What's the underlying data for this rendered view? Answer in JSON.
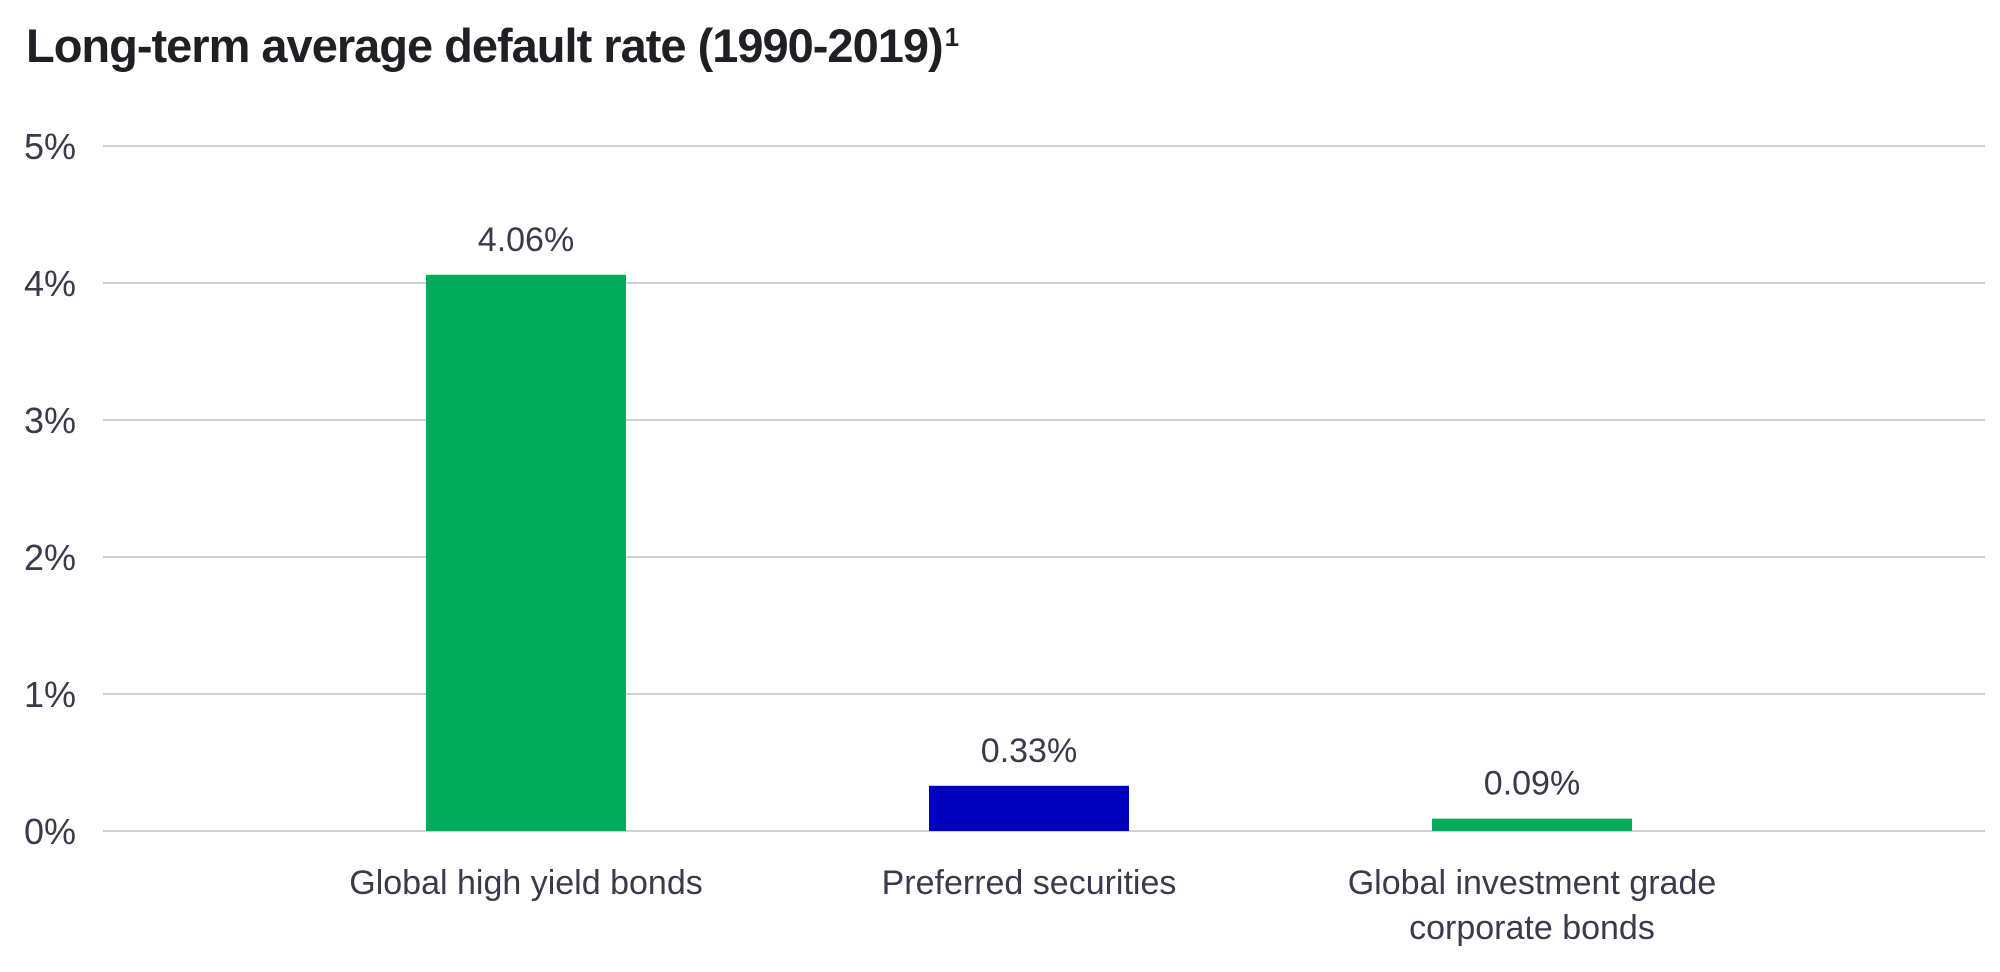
{
  "chart_data": {
    "type": "bar",
    "title": "Long-term average default rate (1990-2019)",
    "title_footnote": "1",
    "categories": [
      [
        "Global high yield bonds"
      ],
      [
        "Preferred securities"
      ],
      [
        "Global investment grade",
        "corporate bonds"
      ]
    ],
    "values": [
      4.06,
      0.33,
      0.09
    ],
    "value_labels": [
      "4.06%",
      "0.33%",
      "0.09%"
    ],
    "bar_colors": [
      "#00AB5C",
      "#0000C0",
      "#00AB5C"
    ],
    "ylim": [
      0,
      5
    ],
    "yticks": [
      0,
      1,
      2,
      3,
      4,
      5
    ],
    "ytick_labels": [
      "0%",
      "1%",
      "2%",
      "3%",
      "4%",
      "5%"
    ],
    "xlabel": "",
    "ylabel": "",
    "grid": true,
    "legend": false
  },
  "colors": {
    "text": "#3a3a4a",
    "title": "#1f1f24",
    "grid": "#cfcfd4"
  }
}
